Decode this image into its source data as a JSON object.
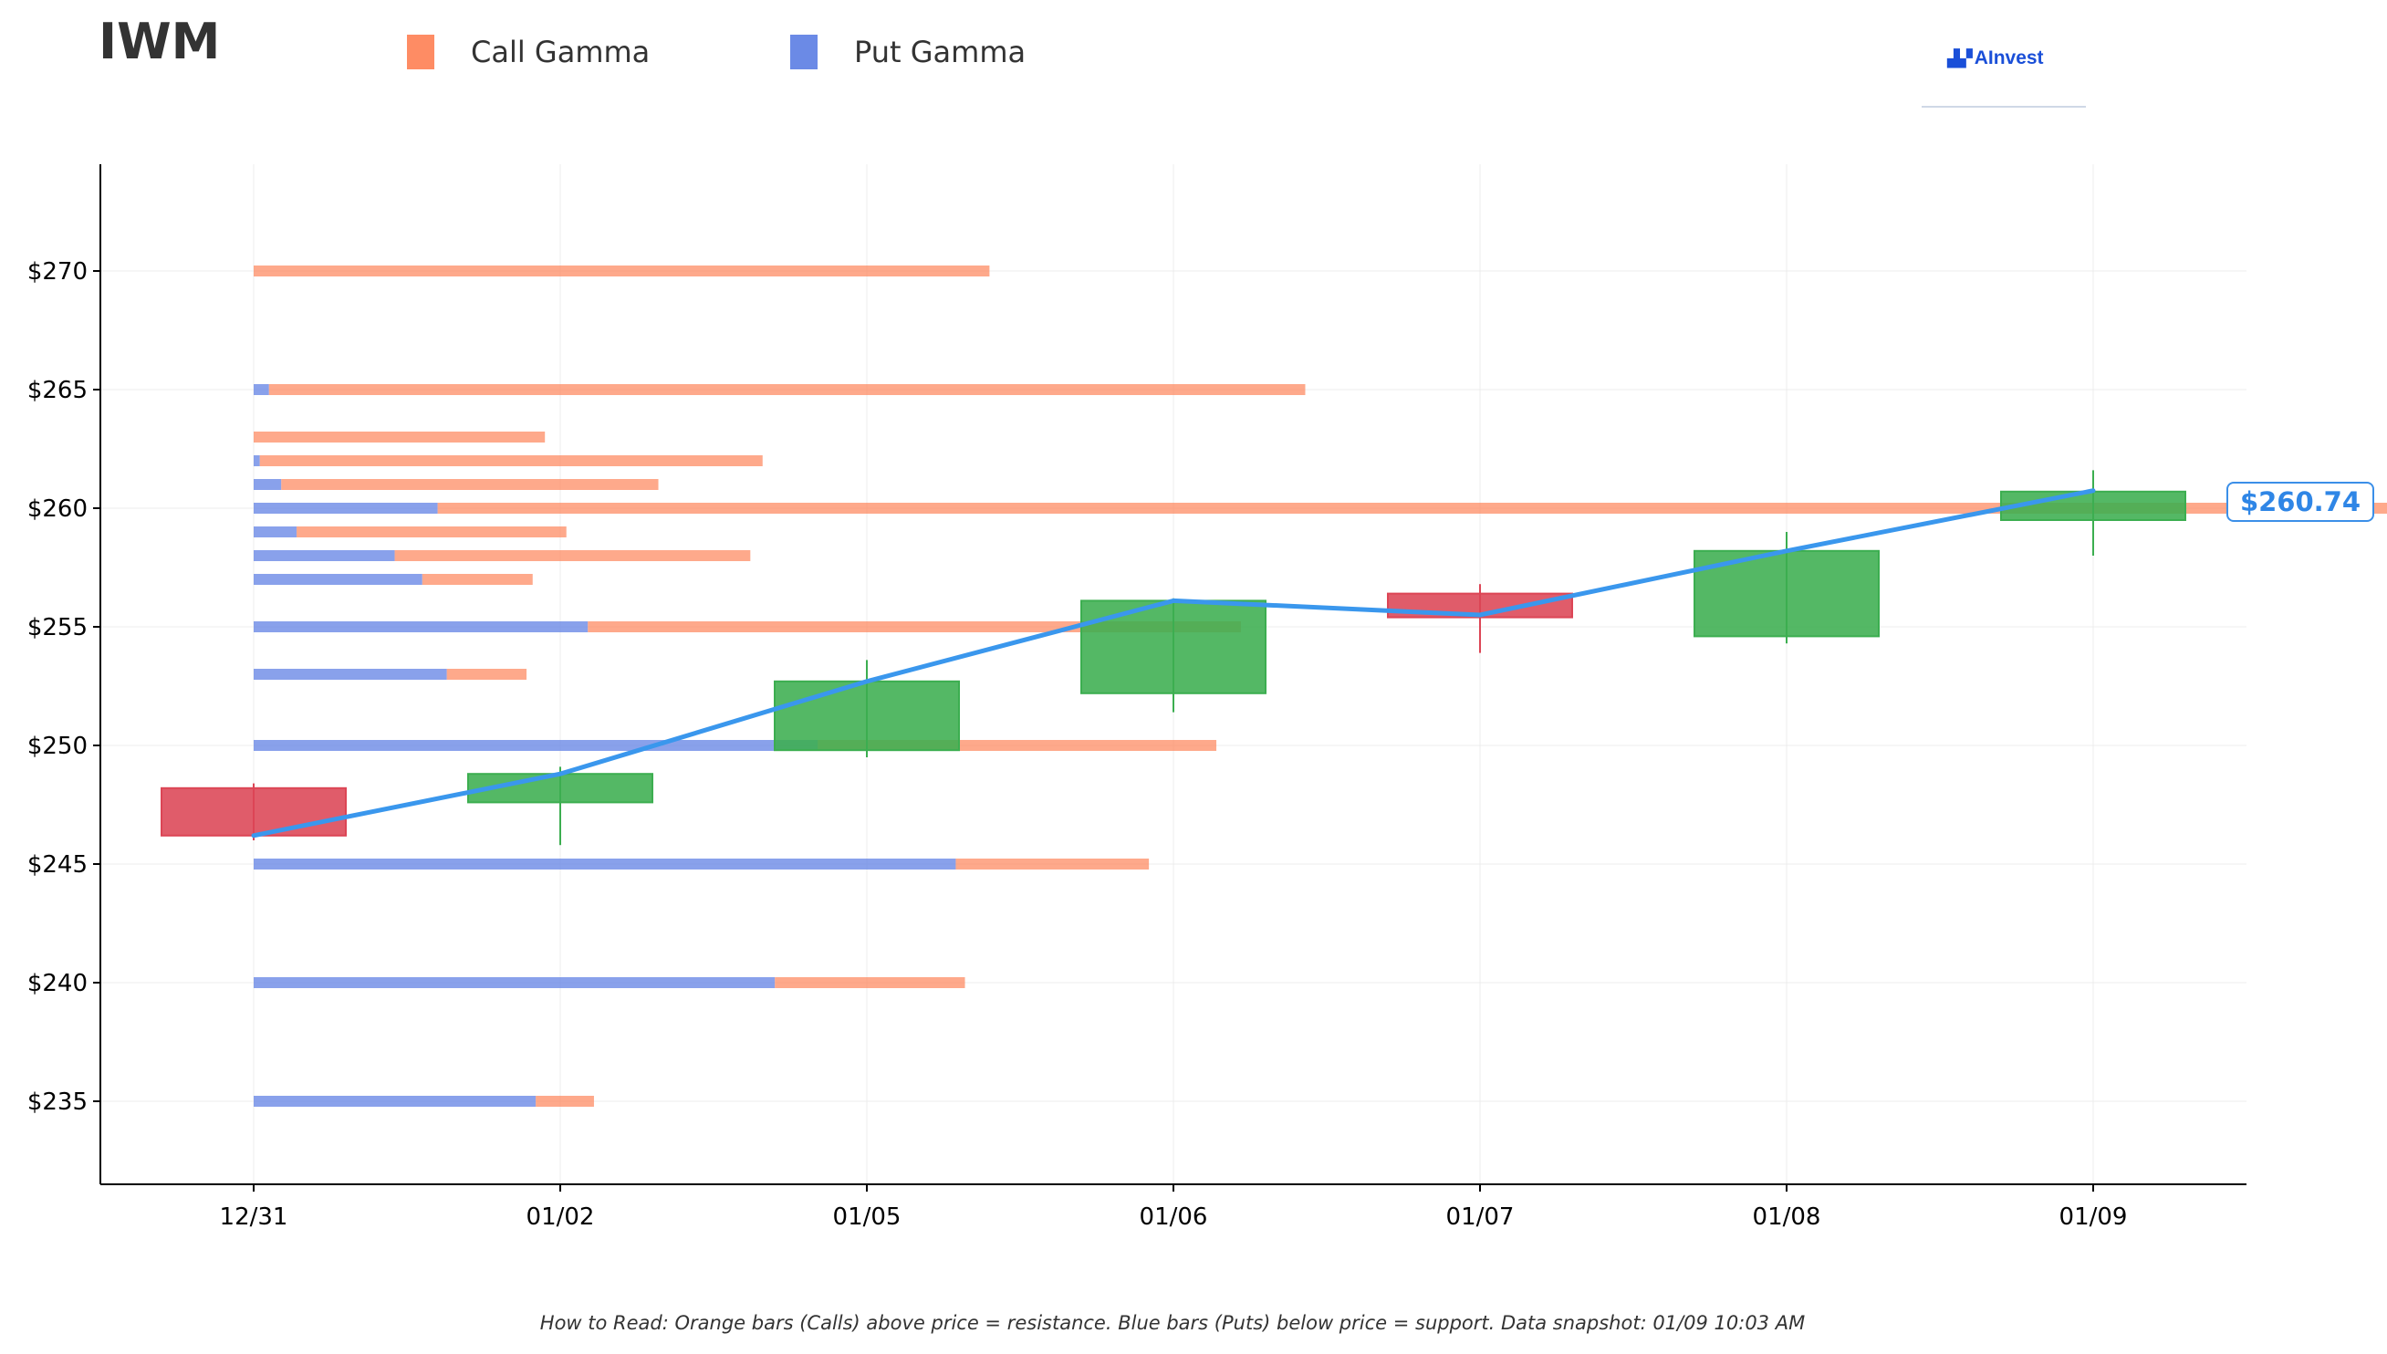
{
  "header": {
    "ticker": "IWM"
  },
  "legend": [
    {
      "label": "Call Gamma",
      "color": "#fe8c64"
    },
    {
      "label": "Put Gamma",
      "color": "#6b8ae6"
    }
  ],
  "logo": {
    "text": "AInvest"
  },
  "price_tag": "$260.74",
  "footnote": "How to Read: Orange bars (Calls) above price = resistance. Blue bars (Puts) below price = support. Data snapshot: 01/09 10:03 AM",
  "chart_data": {
    "type": "candlestick",
    "categories": [
      "12/31",
      "01/02",
      "01/05",
      "01/06",
      "01/07",
      "01/08",
      "01/09"
    ],
    "ylim": [
      231.5,
      274.5
    ],
    "yticks": [
      235,
      240,
      245,
      250,
      255,
      260,
      265,
      270
    ],
    "ytick_labels": [
      "$235",
      "$240",
      "$245",
      "$250",
      "$255",
      "$260",
      "$265",
      "$270"
    ],
    "grid": true,
    "candles": [
      {
        "date": "12/31",
        "open": 248.2,
        "close": 246.2,
        "high": 248.4,
        "low": 246.0
      },
      {
        "date": "01/02",
        "open": 247.6,
        "close": 248.8,
        "high": 249.1,
        "low": 245.8
      },
      {
        "date": "01/05",
        "open": 249.8,
        "close": 252.7,
        "high": 253.6,
        "low": 249.5
      },
      {
        "date": "01/06",
        "open": 252.2,
        "close": 256.1,
        "high": 256.2,
        "low": 251.4
      },
      {
        "date": "01/07",
        "open": 256.4,
        "close": 255.4,
        "high": 256.8,
        "low": 253.9
      },
      {
        "date": "01/08",
        "open": 254.6,
        "close": 258.2,
        "high": 259.0,
        "low": 254.3
      },
      {
        "date": "01/09",
        "open": 259.5,
        "close": 260.7,
        "high": 261.6,
        "low": 258.0
      }
    ],
    "close_line": [
      246.2,
      248.8,
      252.7,
      256.1,
      255.5,
      258.2,
      260.74
    ],
    "colors": {
      "up": "#3cae50",
      "down": "#dc4555",
      "line": "#3a97ed",
      "call": "#fe8c64",
      "put": "#6b8ae6"
    },
    "gamma_unit": "days",
    "gamma": [
      {
        "strike": 270,
        "put": 0.0,
        "call": 2.4
      },
      {
        "strike": 265,
        "put": 0.05,
        "call": 3.38
      },
      {
        "strike": 263,
        "put": 0.0,
        "call": 0.95
      },
      {
        "strike": 262,
        "put": 0.02,
        "call": 1.64
      },
      {
        "strike": 261,
        "put": 0.09,
        "call": 1.23
      },
      {
        "strike": 260,
        "put": 0.6,
        "call": 6.42
      },
      {
        "strike": 259,
        "put": 0.14,
        "call": 0.88
      },
      {
        "strike": 258,
        "put": 0.46,
        "call": 1.16
      },
      {
        "strike": 257,
        "put": 0.55,
        "call": 0.36
      },
      {
        "strike": 255,
        "put": 1.09,
        "call": 2.13
      },
      {
        "strike": 253,
        "put": 0.63,
        "call": 0.26
      },
      {
        "strike": 250,
        "put": 1.84,
        "call": 1.3
      },
      {
        "strike": 245,
        "put": 2.29,
        "call": 0.63
      },
      {
        "strike": 240,
        "put": 1.7,
        "call": 0.62
      },
      {
        "strike": 235,
        "put": 0.92,
        "call": 0.19
      }
    ]
  }
}
